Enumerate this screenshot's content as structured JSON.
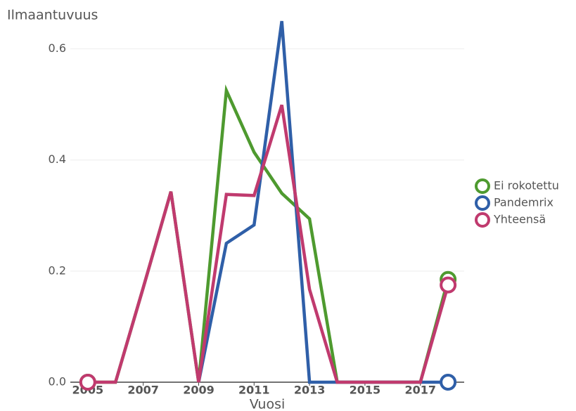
{
  "chart_data": {
    "type": "line",
    "y_label": "Ilmaantuvuus",
    "x_label": "Vuosi",
    "x": [
      2005,
      2006,
      2007,
      2008,
      2009,
      2010,
      2011,
      2012,
      2013,
      2014,
      2015,
      2016,
      2017,
      2018
    ],
    "series": [
      {
        "name": "Ei rokotettu",
        "color": "#4e9a2f",
        "values": [
          0,
          0,
          0.17,
          0.343,
          0,
          0.525,
          0.414,
          0.34,
          0.294,
          0,
          0,
          0,
          0,
          0.185
        ]
      },
      {
        "name": "Pandemrix",
        "color": "#2f5fa8",
        "values": [
          null,
          null,
          null,
          null,
          0,
          0.25,
          0.283,
          0.65,
          0,
          0,
          0,
          0,
          0,
          0
        ]
      },
      {
        "name": "Yhteensä",
        "color": "#c03a6e",
        "values": [
          0,
          0,
          0.17,
          0.343,
          0,
          0.338,
          0.336,
          0.499,
          0.167,
          0,
          0,
          0,
          0,
          0.175
        ]
      }
    ],
    "xlim": [
      2004.37,
      2018.58
    ],
    "xticks": [
      2005,
      2007,
      2009,
      2011,
      2013,
      2015,
      2017
    ],
    "ylim": [
      0,
      0.65
    ],
    "yticks": [
      {
        "value": 0,
        "label": "0.0"
      },
      0.2,
      0.4,
      0.6
    ],
    "grid": true,
    "legend": "right"
  }
}
